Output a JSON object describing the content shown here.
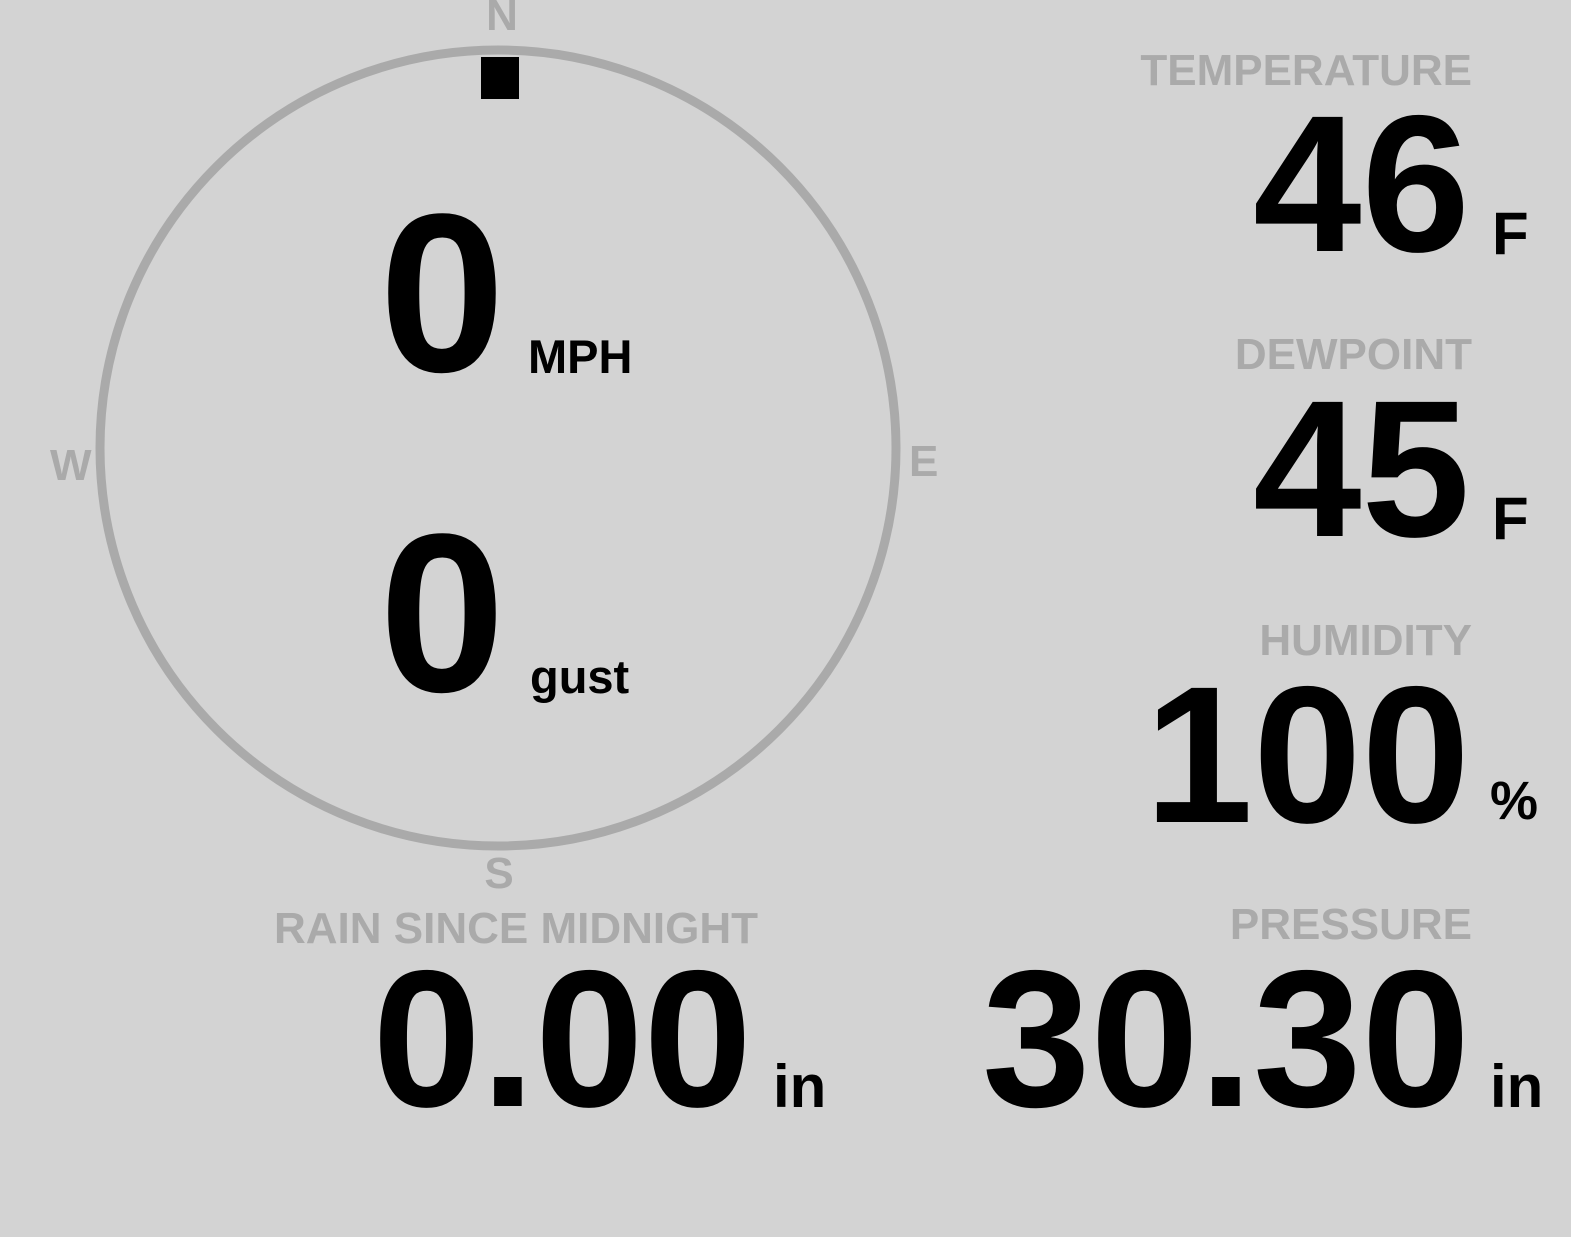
{
  "compass": {
    "north": "N",
    "south": "S",
    "east": "E",
    "west": "W",
    "direction_deg": 0,
    "ring_color": "#aaaaaa"
  },
  "wind": {
    "speed": "0",
    "speed_unit": "MPH",
    "gust": "0",
    "gust_unit": "gust"
  },
  "temperature": {
    "label": "TEMPERATURE",
    "value": "46",
    "unit": "F"
  },
  "dewpoint": {
    "label": "DEWPOINT",
    "value": "45",
    "unit": "F"
  },
  "humidity": {
    "label": "HUMIDITY",
    "value": "100",
    "unit": "%"
  },
  "rain": {
    "label": "RAIN SINCE MIDNIGHT",
    "value": "0.00",
    "unit": "in"
  },
  "pressure": {
    "label": "PRESSURE",
    "value": "30.30",
    "unit": "in"
  }
}
